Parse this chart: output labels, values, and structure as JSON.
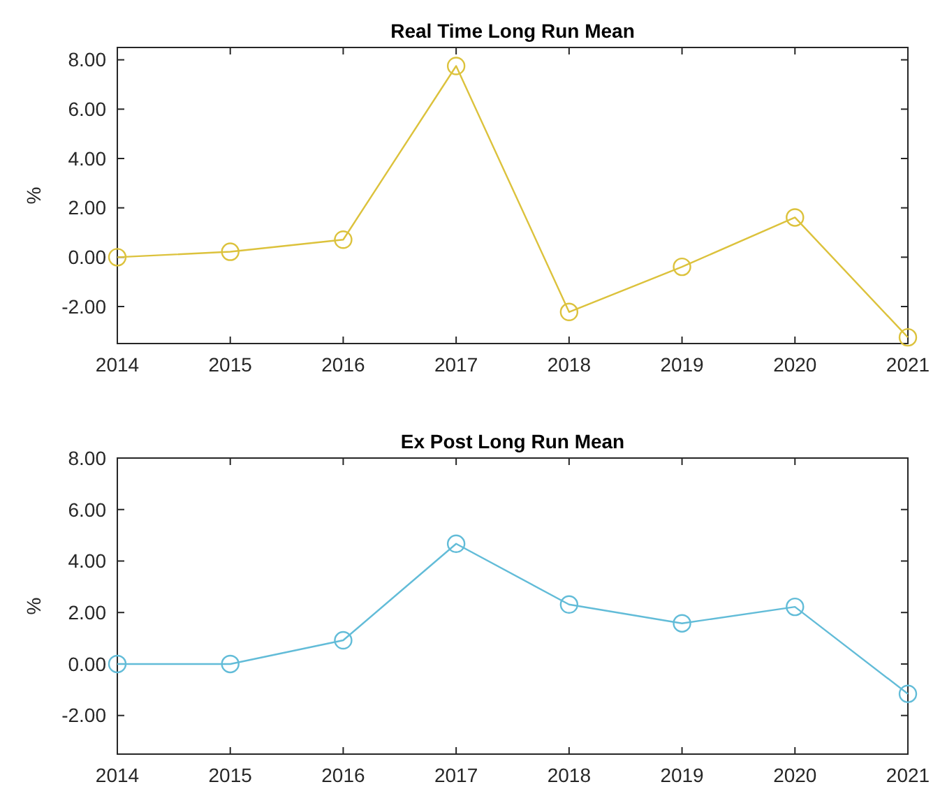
{
  "chart_data": [
    {
      "type": "line",
      "title": "Real Time Long Run Mean",
      "ylabel": "%",
      "x": [
        2014,
        2015,
        2016,
        2017,
        2018,
        2019,
        2020,
        2021
      ],
      "series": [
        {
          "color": "#dcc23c",
          "values": [
            0,
            0.22,
            0.71,
            7.75,
            -2.22,
            -0.39,
            1.61,
            -3.25
          ]
        }
      ],
      "xlim": [
        2014,
        2021
      ],
      "xticks": [
        2014,
        2015,
        2016,
        2017,
        2018,
        2019,
        2020,
        2021
      ],
      "ylim": [
        -3.5,
        8.5
      ],
      "yticks": [
        {
          "value": -2,
          "label": "-2.00"
        },
        {
          "value": 0,
          "label": "0.00"
        },
        {
          "value": 2,
          "label": "2.00"
        },
        {
          "value": 4,
          "label": "4.00"
        },
        {
          "value": 6,
          "label": "6.00"
        },
        {
          "value": 8,
          "label": "8.00"
        }
      ],
      "marker": "circle",
      "grid": false
    },
    {
      "type": "line",
      "title": "Ex Post Long Run Mean",
      "ylabel": "%",
      "x": [
        2014,
        2015,
        2016,
        2017,
        2018,
        2019,
        2020,
        2021
      ],
      "series": [
        {
          "color": "#62bcd8",
          "values": [
            0,
            0,
            0.92,
            4.67,
            2.31,
            1.58,
            2.22,
            -1.16
          ]
        }
      ],
      "xlim": [
        2014,
        2021
      ],
      "xticks": [
        2014,
        2015,
        2016,
        2017,
        2018,
        2019,
        2020,
        2021
      ],
      "ylim": [
        -3.5,
        8
      ],
      "yticks": [
        {
          "value": -2,
          "label": "-2.00"
        },
        {
          "value": 0,
          "label": "0.00"
        },
        {
          "value": 2,
          "label": "2.00"
        },
        {
          "value": 4,
          "label": "4.00"
        },
        {
          "value": 6,
          "label": "6.00"
        },
        {
          "value": 8,
          "label": "8.00"
        }
      ],
      "marker": "circle",
      "grid": false
    }
  ]
}
